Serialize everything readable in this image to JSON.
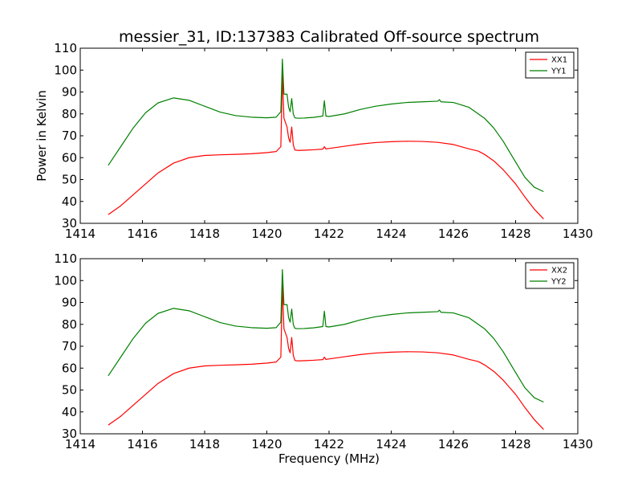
{
  "chart_data": [
    {
      "type": "line",
      "title": "messier_31, ID:137383 Calibrated Off-source spectrum",
      "xlabel": "",
      "ylabel": "Power in Kelvin",
      "xlim": [
        1414,
        1430
      ],
      "ylim": [
        30,
        110
      ],
      "xticks": [
        "1414",
        "1416",
        "1418",
        "1420",
        "1422",
        "1424",
        "1426",
        "1428",
        "1430"
      ],
      "yticks": [
        "30",
        "40",
        "50",
        "60",
        "70",
        "80",
        "90",
        "100",
        "110"
      ],
      "legend": "top-right",
      "series": [
        {
          "name": "XX1",
          "color": "#ff0000",
          "x": [
            1414.9,
            1415.3,
            1415.7,
            1416.1,
            1416.5,
            1417.0,
            1417.5,
            1418.0,
            1418.5,
            1419.0,
            1419.5,
            1420.0,
            1420.3,
            1420.45,
            1420.5,
            1420.55,
            1420.6,
            1420.65,
            1420.7,
            1420.75,
            1420.8,
            1420.85,
            1420.9,
            1421.0,
            1421.2,
            1421.5,
            1421.8,
            1421.85,
            1421.9,
            1422.0,
            1422.5,
            1423.0,
            1423.5,
            1424.0,
            1424.5,
            1425.0,
            1425.5,
            1426.0,
            1426.5,
            1426.8,
            1427.0,
            1427.3,
            1427.6,
            1428.0,
            1428.3,
            1428.6,
            1428.9
          ],
          "y": [
            34,
            38,
            43,
            48,
            53,
            57.5,
            60,
            61,
            61.3,
            61.5,
            61.8,
            62.3,
            62.8,
            65,
            98,
            78,
            76,
            74,
            69,
            67,
            74,
            66,
            63.5,
            63.3,
            63.4,
            63.6,
            63.9,
            65,
            64,
            64.2,
            65.2,
            66.2,
            66.9,
            67.3,
            67.5,
            67.4,
            67,
            66,
            64,
            63,
            61.5,
            58.5,
            54.5,
            48,
            42,
            36.5,
            32
          ]
        },
        {
          "name": "YY1",
          "color": "#008000",
          "x": [
            1414.9,
            1415.3,
            1415.7,
            1416.1,
            1416.5,
            1417.0,
            1417.5,
            1418.0,
            1418.5,
            1419.0,
            1419.5,
            1420.0,
            1420.3,
            1420.45,
            1420.5,
            1420.55,
            1420.6,
            1420.65,
            1420.7,
            1420.75,
            1420.8,
            1420.85,
            1420.9,
            1421.0,
            1421.2,
            1421.5,
            1421.8,
            1421.85,
            1421.9,
            1422.0,
            1422.5,
            1423.0,
            1423.5,
            1424.0,
            1424.5,
            1425.0,
            1425.5,
            1425.55,
            1425.6,
            1426.0,
            1426.5,
            1427.0,
            1427.3,
            1427.6,
            1428.0,
            1428.3,
            1428.6,
            1428.9
          ],
          "y": [
            56.5,
            65,
            73.5,
            80.5,
            85,
            87.3,
            86.2,
            83.5,
            80.8,
            79.2,
            78.5,
            78.2,
            78.5,
            81,
            105,
            89,
            89,
            89,
            83,
            81,
            87,
            80,
            78.2,
            78,
            78.1,
            78.4,
            79,
            86,
            79,
            78.8,
            80,
            82,
            83.5,
            84.5,
            85.2,
            85.5,
            85.8,
            86.5,
            85.5,
            85.2,
            83,
            78,
            73.5,
            67.5,
            58,
            51,
            46.5,
            44.5
          ]
        }
      ]
    },
    {
      "type": "line",
      "title": "",
      "xlabel": "Frequency (MHz)",
      "ylabel": "",
      "xlim": [
        1414,
        1430
      ],
      "ylim": [
        30,
        110
      ],
      "xticks": [
        "1414",
        "1416",
        "1418",
        "1420",
        "1422",
        "1424",
        "1426",
        "1428",
        "1430"
      ],
      "yticks": [
        "30",
        "40",
        "50",
        "60",
        "70",
        "80",
        "90",
        "100",
        "110"
      ],
      "legend": "top-right",
      "series": [
        {
          "name": "XX2",
          "color": "#ff0000",
          "x": [
            1414.9,
            1415.3,
            1415.7,
            1416.1,
            1416.5,
            1417.0,
            1417.5,
            1418.0,
            1418.5,
            1419.0,
            1419.5,
            1420.0,
            1420.3,
            1420.45,
            1420.5,
            1420.55,
            1420.6,
            1420.65,
            1420.7,
            1420.75,
            1420.8,
            1420.85,
            1420.9,
            1421.0,
            1421.2,
            1421.5,
            1421.8,
            1421.85,
            1421.9,
            1422.0,
            1422.5,
            1423.0,
            1423.5,
            1424.0,
            1424.5,
            1425.0,
            1425.5,
            1426.0,
            1426.5,
            1426.8,
            1427.0,
            1427.3,
            1427.6,
            1428.0,
            1428.3,
            1428.6,
            1428.9
          ],
          "y": [
            34,
            38,
            43,
            48,
            53,
            57.5,
            60,
            61,
            61.3,
            61.5,
            61.8,
            62.3,
            62.8,
            65,
            98,
            78,
            76,
            74,
            69,
            67,
            74,
            66,
            63.5,
            63.3,
            63.4,
            63.6,
            63.9,
            65,
            64,
            64.2,
            65.2,
            66.2,
            66.9,
            67.3,
            67.5,
            67.4,
            67,
            66,
            64,
            63,
            61.5,
            58.5,
            54.5,
            48,
            42,
            36.5,
            32
          ]
        },
        {
          "name": "YY2",
          "color": "#008000",
          "x": [
            1414.9,
            1415.3,
            1415.7,
            1416.1,
            1416.5,
            1417.0,
            1417.5,
            1418.0,
            1418.5,
            1419.0,
            1419.5,
            1420.0,
            1420.3,
            1420.45,
            1420.5,
            1420.55,
            1420.6,
            1420.65,
            1420.7,
            1420.75,
            1420.8,
            1420.85,
            1420.9,
            1421.0,
            1421.2,
            1421.5,
            1421.8,
            1421.85,
            1421.9,
            1422.0,
            1422.5,
            1423.0,
            1423.5,
            1424.0,
            1424.5,
            1425.0,
            1425.5,
            1425.55,
            1425.6,
            1426.0,
            1426.5,
            1427.0,
            1427.3,
            1427.6,
            1428.0,
            1428.3,
            1428.6,
            1428.9
          ],
          "y": [
            56.5,
            65,
            73.5,
            80.5,
            85,
            87.3,
            86.2,
            83.5,
            80.8,
            79.2,
            78.5,
            78.2,
            78.5,
            81,
            105,
            89,
            89,
            89,
            83,
            81,
            87,
            80,
            78.2,
            78,
            78.1,
            78.4,
            79,
            86,
            79,
            78.8,
            80,
            82,
            83.5,
            84.5,
            85.2,
            85.5,
            85.8,
            86.5,
            85.5,
            85.2,
            83,
            78,
            73.5,
            67.5,
            58,
            51,
            46.5,
            44.5
          ]
        }
      ]
    }
  ]
}
